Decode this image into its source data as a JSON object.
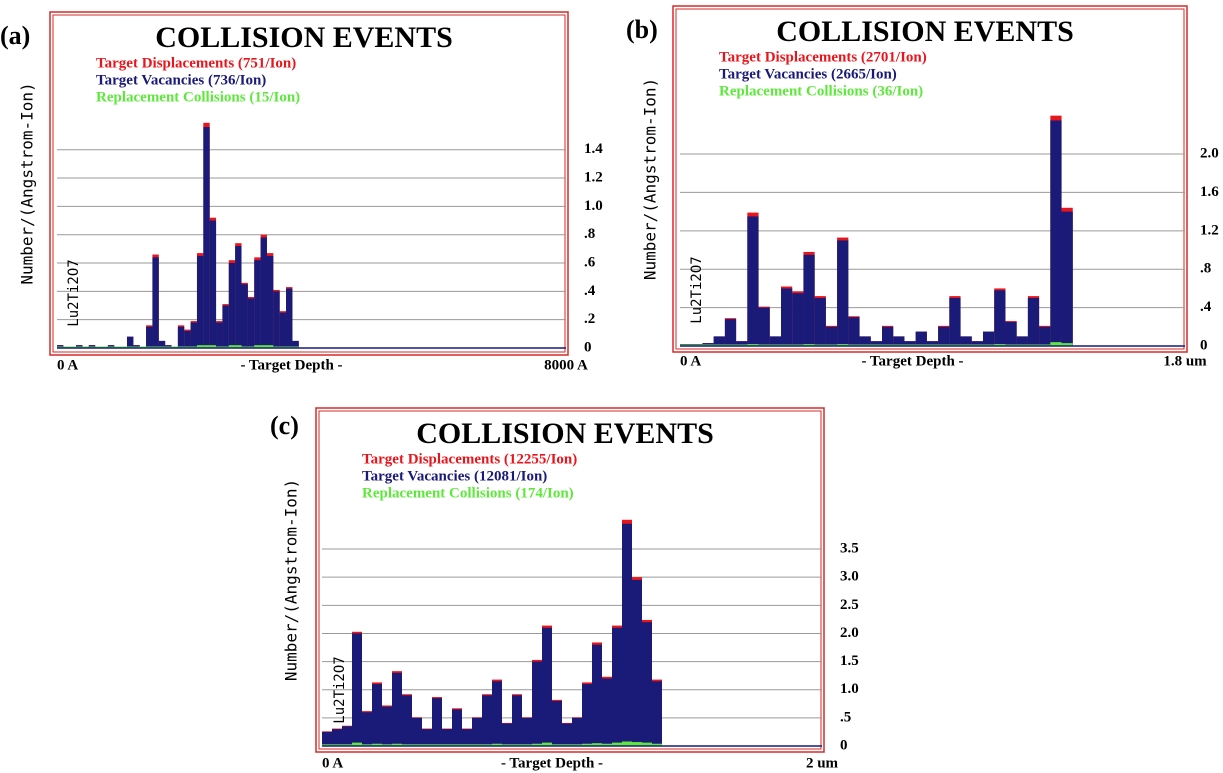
{
  "chart_data": [
    {
      "type": "histogram",
      "panel_label": "(a)",
      "title": "COLLISION EVENTS",
      "ylabel": "Number/(Angstrom-Ion)",
      "xlabel": "- Target Depth -",
      "annotation": "Lu2Ti2O7",
      "bins": [
        0,
        100,
        200,
        300,
        400,
        500,
        600,
        700,
        800,
        900,
        1000,
        1100,
        1200,
        1300,
        1400,
        1500,
        1600,
        1700,
        1800,
        1900,
        2000,
        2100,
        2200,
        2300,
        2400,
        2500,
        2600,
        2700,
        2800,
        2900,
        3000,
        3100,
        3200,
        3300,
        3400,
        3500,
        3600,
        3700,
        3800
      ],
      "series": [
        {
          "name": "Target Displacements (751/Ion)",
          "color": "#e8161c",
          "values": [
            0.02,
            0.01,
            0.01,
            0.02,
            0.01,
            0.02,
            0.01,
            0.01,
            0.02,
            0.01,
            0.01,
            0.08,
            0.02,
            0.01,
            0.16,
            0.66,
            0.05,
            0.02,
            0.01,
            0.16,
            0.13,
            0.19,
            0.67,
            1.59,
            0.92,
            0.19,
            0.31,
            0.62,
            0.74,
            0.46,
            0.36,
            0.64,
            0.8,
            0.67,
            0.41,
            0.26,
            0.43,
            0.05
          ]
        },
        {
          "name": "Target Vacancies (736/Ion)",
          "color": "#1a1a78",
          "values": [
            0.02,
            0.01,
            0.01,
            0.02,
            0.01,
            0.02,
            0.01,
            0.01,
            0.02,
            0.01,
            0.01,
            0.08,
            0.02,
            0.01,
            0.15,
            0.64,
            0.05,
            0.02,
            0.01,
            0.15,
            0.12,
            0.18,
            0.65,
            1.56,
            0.9,
            0.18,
            0.3,
            0.6,
            0.72,
            0.45,
            0.35,
            0.62,
            0.78,
            0.65,
            0.4,
            0.25,
            0.42,
            0.05
          ]
        },
        {
          "name": "Replacement Collisions (15/Ion)",
          "color": "#5ee83c",
          "values": [
            0,
            0,
            0,
            0,
            0,
            0,
            0,
            0,
            0,
            0,
            0,
            0,
            0,
            0,
            0.01,
            0.01,
            0,
            0,
            0,
            0.01,
            0.01,
            0.01,
            0.02,
            0.02,
            0.02,
            0.01,
            0.01,
            0.02,
            0.02,
            0.01,
            0.01,
            0.02,
            0.02,
            0.02,
            0.01,
            0.01,
            0.01,
            0
          ]
        }
      ],
      "xlim": [
        0,
        8000
      ],
      "xticks": [
        {
          "value": 0,
          "label": "0 A"
        },
        {
          "value": 8000,
          "label": "8000 A"
        }
      ],
      "ylim": [
        0,
        2.33
      ],
      "yticks": [
        0,
        {
          "value": 0.2,
          "label": ".2"
        },
        {
          "value": 0.4,
          "label": ".4"
        },
        {
          "value": 0.6,
          "label": ".6"
        },
        {
          "value": 0.8,
          "label": ".8"
        },
        {
          "value": 1.0,
          "label": "1.0"
        },
        1.2,
        1.4
      ],
      "grid": true
    },
    {
      "type": "histogram",
      "panel_label": "(b)",
      "title": "COLLISION EVENTS",
      "ylabel": "Number/(Angstrom-Ion)",
      "xlabel": "- Target Depth -",
      "annotation": "Lu2Ti2O7",
      "bins": [
        0,
        0.04,
        0.08,
        0.12,
        0.16,
        0.2,
        0.24,
        0.28,
        0.32,
        0.36,
        0.4,
        0.44,
        0.48,
        0.52,
        0.56,
        0.6,
        0.64,
        0.68,
        0.72,
        0.76,
        0.8,
        0.84,
        0.88,
        0.92,
        0.96,
        1,
        1.04,
        1.08,
        1.12,
        1.16,
        1.2,
        1.24,
        1.28,
        1.32,
        1.36,
        1.4
      ],
      "series": [
        {
          "name": "Target Displacements (2701/Ion)",
          "color": "#e8161c",
          "values": [
            0.02,
            0.02,
            0.03,
            0.1,
            0.29,
            0.05,
            1.39,
            0.41,
            0.1,
            0.62,
            0.57,
            0.98,
            0.52,
            0.21,
            1.13,
            0.31,
            0.1,
            0.05,
            0.21,
            0.1,
            0.05,
            0.15,
            0.05,
            0.21,
            0.52,
            0.1,
            0.05,
            0.15,
            0.6,
            0.26,
            0.1,
            0.52,
            0.21,
            2.4,
            1.44
          ]
        },
        {
          "name": "Target Vacancies (2665/Ion)",
          "color": "#1a1a78",
          "values": [
            0.02,
            0.02,
            0.03,
            0.1,
            0.28,
            0.05,
            1.35,
            0.4,
            0.1,
            0.6,
            0.55,
            0.95,
            0.5,
            0.2,
            1.1,
            0.3,
            0.1,
            0.05,
            0.2,
            0.1,
            0.05,
            0.15,
            0.05,
            0.2,
            0.5,
            0.1,
            0.05,
            0.15,
            0.58,
            0.25,
            0.1,
            0.5,
            0.2,
            2.35,
            1.4
          ]
        },
        {
          "name": "Replacement Collisions (36/Ion)",
          "color": "#5ee83c",
          "values": [
            0,
            0,
            0,
            0.01,
            0.01,
            0,
            0.02,
            0.01,
            0,
            0.01,
            0.01,
            0.02,
            0.01,
            0.01,
            0.02,
            0.01,
            0,
            0,
            0.01,
            0,
            0,
            0.01,
            0,
            0.01,
            0.01,
            0,
            0,
            0.01,
            0.02,
            0.01,
            0,
            0.01,
            0.01,
            0.04,
            0.03
          ]
        }
      ],
      "xlim": [
        0,
        1.8
      ],
      "xticks": [
        {
          "value": 0,
          "label": "0 A"
        },
        {
          "value": 1.8,
          "label": "1.8 um"
        }
      ],
      "ylim": [
        0,
        3.48
      ],
      "yticks": [
        0,
        {
          "value": 0.4,
          "label": ".4"
        },
        {
          "value": 0.8,
          "label": ".8"
        },
        1.2,
        1.6,
        {
          "value": 2.0,
          "label": "2.0"
        }
      ],
      "grid": true
    },
    {
      "type": "histogram",
      "panel_label": "(c)",
      "title": "COLLISION EVENTS",
      "ylabel": "Number/(Angstrom-Ion)",
      "xlabel": "- Target Depth -",
      "annotation": "Lu2Ti2O7",
      "bins": [
        0,
        0.04,
        0.08,
        0.12,
        0.16,
        0.2,
        0.24,
        0.28,
        0.32,
        0.36,
        0.4,
        0.44,
        0.48,
        0.52,
        0.56,
        0.6,
        0.64,
        0.68,
        0.72,
        0.76,
        0.8,
        0.84,
        0.88,
        0.92,
        0.96,
        1,
        1.04,
        1.08,
        1.12,
        1.16,
        1.2,
        1.24,
        1.28,
        1.32,
        1.36
      ],
      "series": [
        {
          "name": "Target Displacements (12255/Ion)",
          "color": "#e8161c",
          "values": [
            0.26,
            0.31,
            0.36,
            2.03,
            0.62,
            1.13,
            0.72,
            1.33,
            0.92,
            0.51,
            0.31,
            0.87,
            0.31,
            0.67,
            0.31,
            0.51,
            0.92,
            1.18,
            0.41,
            0.92,
            0.51,
            1.53,
            2.14,
            0.82,
            0.41,
            0.51,
            1.13,
            1.84,
            1.23,
            2.14,
            4.02,
            3.0,
            2.24,
            1.18
          ]
        },
        {
          "name": "Target Vacancies (12081/Ion)",
          "color": "#1a1a78",
          "values": [
            0.25,
            0.3,
            0.35,
            2.0,
            0.6,
            1.1,
            0.7,
            1.3,
            0.9,
            0.5,
            0.3,
            0.85,
            0.3,
            0.65,
            0.3,
            0.5,
            0.9,
            1.15,
            0.4,
            0.9,
            0.5,
            1.5,
            2.1,
            0.8,
            0.4,
            0.5,
            1.1,
            1.8,
            1.2,
            2.1,
            3.95,
            2.95,
            2.2,
            1.15
          ]
        },
        {
          "name": "Replacement Collisions (174/Ion)",
          "color": "#5ee83c",
          "values": [
            0.03,
            0.03,
            0.03,
            0.06,
            0.03,
            0.04,
            0.03,
            0.04,
            0.03,
            0.03,
            0.03,
            0.03,
            0.03,
            0.03,
            0.03,
            0.03,
            0.03,
            0.04,
            0.03,
            0.03,
            0.03,
            0.04,
            0.06,
            0.03,
            0.03,
            0.03,
            0.04,
            0.05,
            0.04,
            0.06,
            0.08,
            0.07,
            0.06,
            0.04
          ]
        }
      ],
      "xlim": [
        0,
        2
      ],
      "xticks": [
        {
          "value": 0,
          "label": "0 A"
        },
        {
          "value": 2,
          "label": "2 um"
        }
      ],
      "ylim": [
        0,
        5.9
      ],
      "yticks": [
        0,
        {
          "value": 0.5,
          "label": ".5"
        },
        {
          "value": 1.0,
          "label": "1.0"
        },
        1.5,
        {
          "value": 2.0,
          "label": "2.0"
        },
        2.5,
        {
          "value": 3.0,
          "label": "3.0"
        },
        3.5
      ],
      "grid": true
    }
  ]
}
